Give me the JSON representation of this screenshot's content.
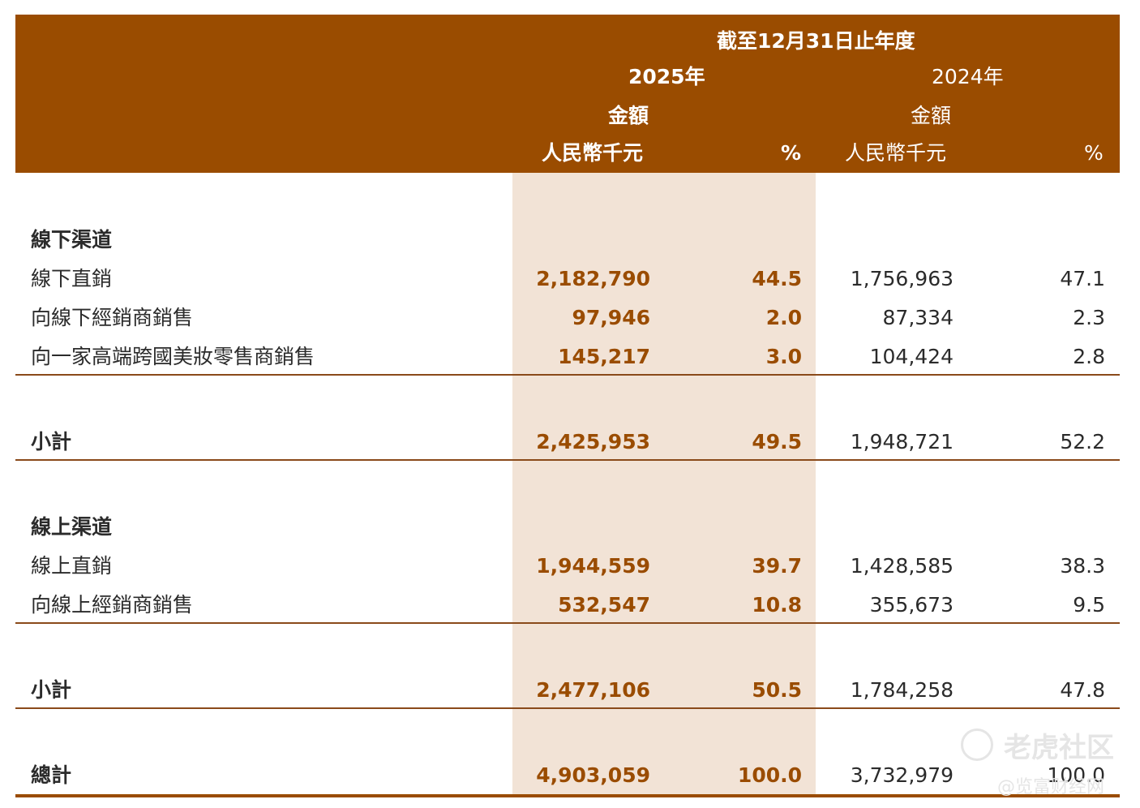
{
  "header": {
    "period": "截至12月31日止年度",
    "year_2025": "2025年",
    "year_2024": "2024年",
    "amount_label_2025": "金額",
    "amount_label_2024": "金額",
    "unit_2025": "人民幣千元",
    "unit_2024": "人民幣千元",
    "pct_2025": "%",
    "pct_2024": "%"
  },
  "offline": {
    "title": "線下渠道",
    "rows": [
      {
        "label": "線下直銷",
        "amt_2025": "2,182,790",
        "pct_2025": "44.5",
        "amt_2024": "1,756,963",
        "pct_2024": "47.1"
      },
      {
        "label": "向線下經銷商銷售",
        "amt_2025": "97,946",
        "pct_2025": "2.0",
        "amt_2024": "87,334",
        "pct_2024": "2.3"
      },
      {
        "label": "向一家高端跨國美妝零售商銷售",
        "amt_2025": "145,217",
        "pct_2025": "3.0",
        "amt_2024": "104,424",
        "pct_2024": "2.8"
      }
    ],
    "subtotal": {
      "label": "小計",
      "amt_2025": "2,425,953",
      "pct_2025": "49.5",
      "amt_2024": "1,948,721",
      "pct_2024": "52.2"
    }
  },
  "online": {
    "title": "線上渠道",
    "rows": [
      {
        "label": "線上直銷",
        "amt_2025": "1,944,559",
        "pct_2025": "39.7",
        "amt_2024": "1,428,585",
        "pct_2024": "38.3"
      },
      {
        "label": "向線上經銷商銷售",
        "amt_2025": "532,547",
        "pct_2025": "10.8",
        "amt_2024": "355,673",
        "pct_2024": "9.5"
      }
    ],
    "subtotal": {
      "label": "小計",
      "amt_2025": "2,477,106",
      "pct_2025": "50.5",
      "amt_2024": "1,784,258",
      "pct_2024": "47.8"
    }
  },
  "total": {
    "label": "總計",
    "amt_2025": "4,903,059",
    "pct_2025": "100.0",
    "amt_2024": "3,732,979",
    "pct_2024": "100.0"
  },
  "watermark": {
    "brand": "老虎社区",
    "credit": "@览富财经网"
  },
  "colors": {
    "header_bg": "#9a4c00",
    "highlight_bg": "#f2e3d6",
    "accent_text": "#9a4c00",
    "rule": "#8a4a1a"
  }
}
